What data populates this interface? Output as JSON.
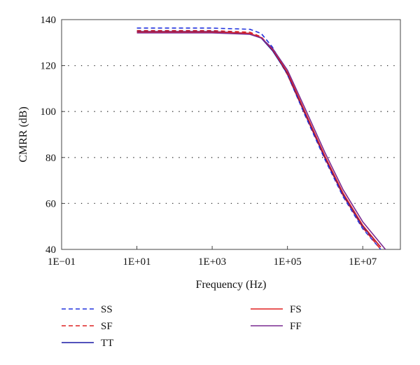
{
  "chart_data": {
    "type": "line",
    "title": "",
    "xlabel": "Frequency (Hz)",
    "ylabel": "CMRR (dB)",
    "xscale": "log",
    "xlim": [
      0.1,
      100000000
    ],
    "ylim": [
      40,
      140
    ],
    "x_ticks": [
      {
        "value": 0.1,
        "label": "1E−01"
      },
      {
        "value": 10,
        "label": "1E+01"
      },
      {
        "value": 1000,
        "label": "1E+03"
      },
      {
        "value": 100000,
        "label": "1E+05"
      },
      {
        "value": 10000000,
        "label": "1E+07"
      }
    ],
    "y_ticks": [
      40,
      60,
      80,
      100,
      120,
      140
    ],
    "grid": "horizontal dotted",
    "legend_position": "below plot, two columns",
    "series": [
      {
        "name": "SS",
        "color": "#2233dd",
        "dash": "dashed",
        "x": [
          10,
          1000,
          10000,
          20000,
          40000,
          100000,
          300000,
          1000000,
          3000000,
          10000000,
          30000000
        ],
        "y": [
          136.3,
          136.3,
          135.8,
          134,
          128,
          116,
          98,
          79,
          63,
          49,
          40
        ]
      },
      {
        "name": "SF",
        "color": "#dd2222",
        "dash": "dashed",
        "x": [
          10,
          1000,
          10000,
          20000,
          40000,
          100000,
          300000,
          1000000,
          3000000,
          10000000,
          30000000
        ],
        "y": [
          135.2,
          135.2,
          134.5,
          132.5,
          127,
          116,
          98.5,
          79.5,
          63.5,
          49.5,
          40
        ]
      },
      {
        "name": "TT",
        "color": "#1a1aa6",
        "dash": "solid",
        "x": [
          10,
          1000,
          10000,
          20000,
          40000,
          100000,
          300000,
          1000000,
          3000000,
          10000000,
          30000000
        ],
        "y": [
          134.8,
          134.8,
          134,
          132,
          126.5,
          116.5,
          99,
          80,
          64,
          50,
          41
        ]
      },
      {
        "name": "FS",
        "color": "#e02020",
        "dash": "solid",
        "x": [
          10,
          1000,
          10000,
          20000,
          40000,
          100000,
          300000,
          1000000,
          3000000,
          10000000,
          30000000
        ],
        "y": [
          134.6,
          134.6,
          134,
          132.2,
          127,
          117,
          99.5,
          80.5,
          64.5,
          50.5,
          41
        ]
      },
      {
        "name": "FF",
        "color": "#7a2a90",
        "dash": "solid",
        "x": [
          10,
          1000,
          10000,
          20000,
          40000,
          100000,
          300000,
          1000000,
          3000000,
          10000000,
          40000000
        ],
        "y": [
          134.2,
          134.2,
          133.6,
          132,
          127.5,
          118,
          101,
          82,
          66,
          52,
          40
        ]
      }
    ]
  }
}
